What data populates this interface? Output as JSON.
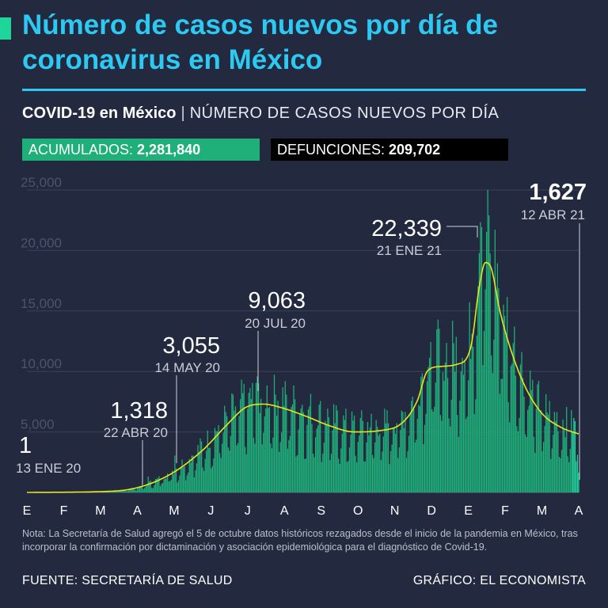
{
  "title": "Número de casos nuevos por día de coronavirus en México",
  "subtitle": {
    "main": "COVID-19 en México",
    "separator": "|",
    "detail": "NÚMERO DE CASOS NUEVOS POR DÍA"
  },
  "stats": {
    "acumulados_label": "ACUMULADOS:",
    "acumulados_value": "2,281,840",
    "defunciones_label": "DEFUNCIONES:",
    "defunciones_value": "209,702"
  },
  "colors": {
    "title": "#2ec9f2",
    "bars": "#1fb07a",
    "bars_highlight": "#1fd69a",
    "trend": "#e6e619",
    "acumulados_bg": "#1fb07a",
    "defunciones_bg": "#000000",
    "background": "#232a40"
  },
  "chart_data": {
    "type": "bar",
    "title": "Número de casos nuevos por día",
    "xlabel": "",
    "ylabel": "",
    "ylim": [
      0,
      25000
    ],
    "yticks": [
      5000,
      10000,
      15000,
      20000,
      25000
    ],
    "ytick_labels": [
      "5,000",
      "10,000",
      "15,000",
      "20,000",
      "25,000"
    ],
    "xticks": [
      "E",
      "F",
      "M",
      "A",
      "M",
      "J",
      "J",
      "A",
      "S",
      "O",
      "N",
      "D",
      "E",
      "F",
      "M",
      "A"
    ],
    "x_start": "13 ENE 20",
    "x_end": "12 ABR 21",
    "total_days": 456,
    "trend_anchors": [
      {
        "day": 0,
        "value": 0
      },
      {
        "day": 70,
        "value": 100
      },
      {
        "day": 95,
        "value": 500
      },
      {
        "day": 120,
        "value": 1600
      },
      {
        "day": 145,
        "value": 3500
      },
      {
        "day": 165,
        "value": 5600
      },
      {
        "day": 180,
        "value": 7000
      },
      {
        "day": 195,
        "value": 7300
      },
      {
        "day": 210,
        "value": 7000
      },
      {
        "day": 230,
        "value": 6300
      },
      {
        "day": 250,
        "value": 5500
      },
      {
        "day": 270,
        "value": 5000
      },
      {
        "day": 290,
        "value": 5100
      },
      {
        "day": 310,
        "value": 5800
      },
      {
        "day": 322,
        "value": 7600
      },
      {
        "day": 330,
        "value": 10000
      },
      {
        "day": 340,
        "value": 10400
      },
      {
        "day": 355,
        "value": 10600
      },
      {
        "day": 366,
        "value": 12000
      },
      {
        "day": 373,
        "value": 17000
      },
      {
        "day": 378,
        "value": 19000
      },
      {
        "day": 383,
        "value": 18500
      },
      {
        "day": 390,
        "value": 15000
      },
      {
        "day": 400,
        "value": 11500
      },
      {
        "day": 412,
        "value": 8500
      },
      {
        "day": 425,
        "value": 6500
      },
      {
        "day": 440,
        "value": 5400
      },
      {
        "day": 456,
        "value": 4800
      }
    ],
    "annotations": [
      {
        "value_label": "1",
        "date_label": "13 ENE 20",
        "day": 0,
        "value": 1
      },
      {
        "value_label": "1,318",
        "date_label": "22 ABR 20",
        "day": 100,
        "value": 1318
      },
      {
        "value_label": "3,055",
        "date_label": "14 MAY 20",
        "day": 122,
        "value": 3055
      },
      {
        "value_label": "9,063",
        "date_label": "20 JUL 20",
        "day": 189,
        "value": 9063
      },
      {
        "value_label": "22,339",
        "date_label": "21 ENE 21",
        "day": 374,
        "value": 22339
      },
      {
        "value_label": "1,627",
        "date_label": "12 ABR 21",
        "day": 455,
        "value": 1627
      }
    ]
  },
  "note": "Nota: La Secretaría de Salud agregó el 5 de octubre datos históricos rezagados desde el inicio de la pandemia en México, tras incorporar la confirmación por dictaminación y asociación epidemiológica para el diagnóstico de Covid-19.",
  "footer": {
    "source": "FUENTE: SECRETARÍA DE SALUD",
    "credit": "GRÁFICO: EL ECONOMISTA"
  }
}
